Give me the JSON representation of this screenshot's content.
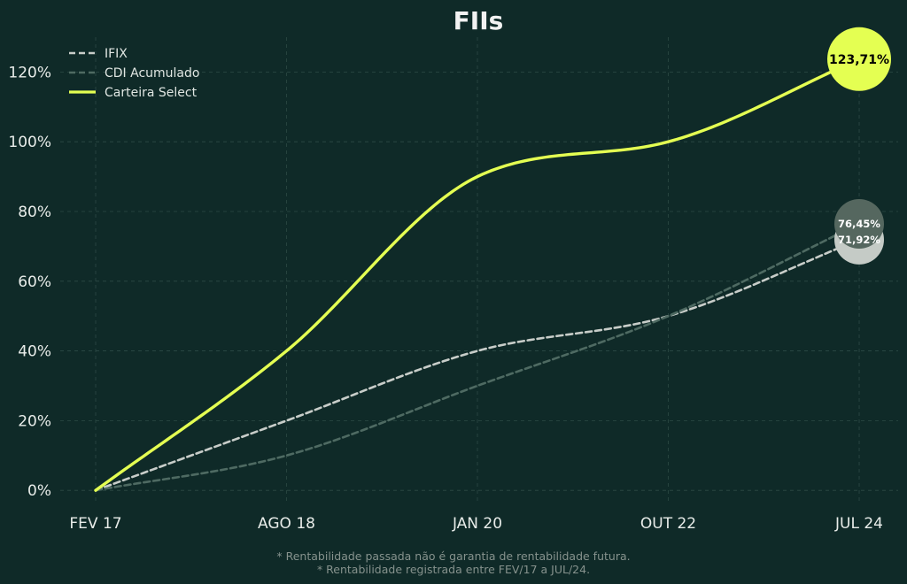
{
  "chart_data": {
    "type": "line",
    "title": "FIIs",
    "x_labels": [
      "FEV 17",
      "AGO 18",
      "JAN 20",
      "OUT 22",
      "JUL 24"
    ],
    "y_ticks": [
      0,
      20,
      40,
      60,
      80,
      100,
      120
    ],
    "y_tick_labels": [
      "0%",
      "20%",
      "40%",
      "60%",
      "80%",
      "100%",
      "120%"
    ],
    "ylim": [
      -3,
      130
    ],
    "grid": true,
    "legend_position": "top-left",
    "series": [
      {
        "name": "IFIX",
        "style": "dashed",
        "color": "#c8cdc9",
        "points": [
          [
            0,
            0
          ],
          [
            1,
            20
          ],
          [
            2,
            40
          ],
          [
            3,
            50
          ],
          [
            4,
            71.92
          ]
        ],
        "end_label": "71,92%",
        "end_marker_color": "#c5cbc6",
        "end_label_color": "#ffffff"
      },
      {
        "name": "CDI Acumulado",
        "style": "dashed",
        "color": "#4e6a62",
        "points": [
          [
            0,
            0
          ],
          [
            1,
            10
          ],
          [
            2,
            30
          ],
          [
            3,
            50
          ],
          [
            4,
            76.45
          ]
        ],
        "end_label": "76,45%",
        "end_marker_color": "#55675f",
        "end_label_color": "#ffffff"
      },
      {
        "name": "Carteira Select",
        "style": "solid",
        "color": "#e4ff52",
        "points": [
          [
            0,
            0
          ],
          [
            1,
            40
          ],
          [
            2,
            90
          ],
          [
            3,
            100
          ],
          [
            4,
            123.71
          ]
        ],
        "end_label": "123,71%",
        "end_marker_color": "#e4ff52",
        "end_label_color": "#000000"
      }
    ]
  },
  "footnotes": [
    "* Rentabilidade passada não é garantia de rentabilidade futura.",
    "* Rentabilidade registrada entre FEV/17 a JUL/24."
  ],
  "colors": {
    "background": "#0f2a28",
    "grid": "#2d4a45"
  }
}
